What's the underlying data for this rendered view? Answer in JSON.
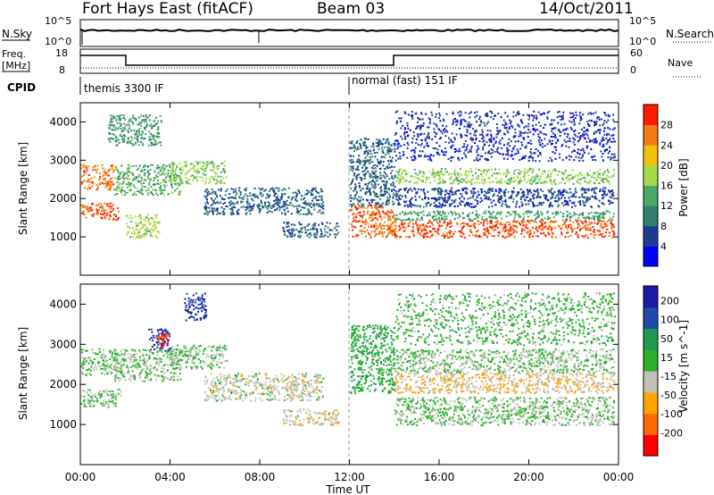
{
  "header": {
    "title": "Fort Hays East (fitACF)",
    "beam": "Beam 03",
    "date": "14/Oct/2011"
  },
  "noise_panel": {
    "left_label": "N.Sky",
    "left_ticks": [
      "10^5",
      "10^0"
    ],
    "right_label": "N.Search",
    "right_ticks": [
      "10^5",
      "10^0"
    ]
  },
  "freq_panel": {
    "left_label_1": "Freq.",
    "left_label_2": "[MHz]",
    "left_ticks": [
      "18",
      "8"
    ],
    "right_label": "Nave",
    "right_ticks": [
      "60",
      "0"
    ]
  },
  "cpid_panel": {
    "label": "CPID",
    "segments": [
      "themis 3300 IF",
      "normal (fast) 151 IF"
    ]
  },
  "colors": {
    "power_scale": [
      "#0000ff",
      "#1c3c91",
      "#2e7f6e",
      "#4aa866",
      "#a6d94a",
      "#f2c20b",
      "#f57a10",
      "#ff1a00"
    ],
    "velocity_scale": [
      "#ff0000",
      "#ff6a00",
      "#ffa500",
      "#c0c0b8",
      "#2ab02a",
      "#1f9a50",
      "#1f4aa8",
      "#1a1aa6"
    ]
  },
  "chart_data": [
    {
      "type": "heatmap",
      "name": "power",
      "ylabel": "Slant Range [km]",
      "yticks": [
        "1000",
        "2000",
        "3000",
        "4000"
      ],
      "ylim": [
        0,
        4500
      ],
      "xticks": [
        "00:00",
        "04:00",
        "08:00",
        "12:00",
        "16:00",
        "20:00",
        "00:00"
      ],
      "xlim_hours": [
        0,
        24
      ],
      "colorbar_label": "Power [dB]",
      "colorbar_ticks": [
        "4",
        "8",
        "12",
        "16",
        "20",
        "24",
        "28"
      ],
      "range": [
        0,
        32
      ],
      "regions": [
        {
          "t0": 0.0,
          "t1": 1.5,
          "r0": 2250,
          "r1": 2900,
          "value": 26
        },
        {
          "t0": 0.0,
          "t1": 1.7,
          "r0": 1450,
          "r1": 1900,
          "value": 27
        },
        {
          "t0": 1.5,
          "t1": 4.5,
          "r0": 2100,
          "r1": 2900,
          "value": 14
        },
        {
          "t0": 1.2,
          "t1": 3.6,
          "r0": 3400,
          "r1": 4200,
          "value": 12
        },
        {
          "t0": 2.0,
          "t1": 3.5,
          "r0": 1000,
          "r1": 1600,
          "value": 18
        },
        {
          "t0": 4.0,
          "t1": 6.5,
          "r0": 2400,
          "r1": 3000,
          "value": 17
        },
        {
          "t0": 5.5,
          "t1": 10.8,
          "r0": 1600,
          "r1": 2300,
          "value": 8
        },
        {
          "t0": 9.0,
          "t1": 11.5,
          "r0": 1000,
          "r1": 1400,
          "value": 8
        },
        {
          "t0": 12.0,
          "t1": 14.0,
          "r0": 1000,
          "r1": 1900,
          "value": 27
        },
        {
          "t0": 12.0,
          "t1": 14.0,
          "r0": 1800,
          "r1": 3600,
          "value": 8
        },
        {
          "t0": 14.0,
          "t1": 23.8,
          "r0": 1000,
          "r1": 1450,
          "value": 28
        },
        {
          "t0": 14.0,
          "t1": 23.8,
          "r0": 1450,
          "r1": 1700,
          "value": 13
        },
        {
          "t0": 14.0,
          "t1": 23.8,
          "r0": 2400,
          "r1": 2800,
          "value": 17
        },
        {
          "t0": 14.0,
          "t1": 23.8,
          "r0": 1800,
          "r1": 2300,
          "value": 6
        },
        {
          "t0": 14.0,
          "t1": 23.8,
          "r0": 3000,
          "r1": 4300,
          "value": 5
        }
      ]
    },
    {
      "type": "heatmap",
      "name": "velocity",
      "ylabel": "Slant Range [km]",
      "yticks": [
        "1000",
        "2000",
        "3000",
        "4000"
      ],
      "ylim": [
        0,
        4500
      ],
      "xticks": [
        "00:00",
        "04:00",
        "08:00",
        "12:00",
        "16:00",
        "20:00",
        "00:00"
      ],
      "xlim_hours": [
        0,
        24
      ],
      "xlabel": "Time UT",
      "colorbar_label": "Velocity [m s^-1]",
      "colorbar_ticks": [
        "200",
        "100",
        "50",
        "15",
        "-15",
        "-50",
        "-100",
        "-200"
      ],
      "range": [
        -250,
        250
      ],
      "regions": [
        {
          "t0": 0.0,
          "t1": 1.8,
          "r0": 2250,
          "r1": 2900,
          "value": 0
        },
        {
          "t0": 0.0,
          "t1": 1.8,
          "r0": 1450,
          "r1": 1900,
          "value": 0
        },
        {
          "t0": 1.5,
          "t1": 4.5,
          "r0": 2100,
          "r1": 2900,
          "value": 0
        },
        {
          "t0": 3.0,
          "t1": 4.0,
          "r0": 2850,
          "r1": 3400,
          "value": 200
        },
        {
          "t0": 3.4,
          "t1": 3.9,
          "r0": 2950,
          "r1": 3300,
          "value": -200
        },
        {
          "t0": 4.6,
          "t1": 5.6,
          "r0": 3600,
          "r1": 4300,
          "value": 200
        },
        {
          "t0": 4.0,
          "t1": 6.5,
          "r0": 2400,
          "r1": 3000,
          "value": 0
        },
        {
          "t0": 5.5,
          "t1": 10.8,
          "r0": 1600,
          "r1": 2300,
          "value": -30
        },
        {
          "t0": 9.0,
          "t1": 11.5,
          "r0": 1000,
          "r1": 1400,
          "value": -40
        },
        {
          "t0": 12.0,
          "t1": 14.0,
          "r0": 1800,
          "r1": 3500,
          "value": 60
        },
        {
          "t0": 14.0,
          "t1": 23.8,
          "r0": 1000,
          "r1": 1700,
          "value": 0
        },
        {
          "t0": 14.0,
          "t1": 23.8,
          "r0": 2300,
          "r1": 2900,
          "value": 0
        },
        {
          "t0": 14.0,
          "t1": 23.8,
          "r0": 1800,
          "r1": 2300,
          "value": -60
        },
        {
          "t0": 14.0,
          "t1": 23.8,
          "r0": 3000,
          "r1": 4300,
          "value": 30
        }
      ]
    }
  ]
}
